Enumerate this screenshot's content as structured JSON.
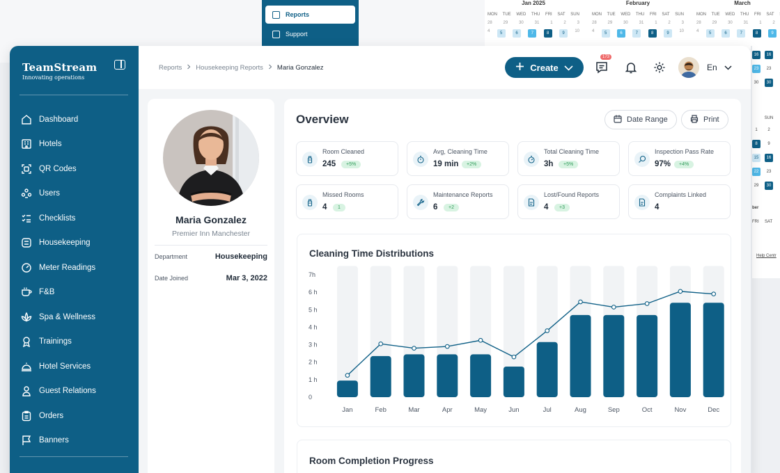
{
  "ghost": {
    "nav": [
      {
        "label": "Reports",
        "active": true
      },
      {
        "label": "Support",
        "active": false
      }
    ],
    "calendar": {
      "months": [
        "Jan 2025",
        "February",
        "March"
      ],
      "weekdays": [
        "MON",
        "TUE",
        "WED",
        "THU",
        "FRI",
        "SAT",
        "SUN"
      ],
      "row1": [
        "28",
        "29",
        "30",
        "31",
        "1",
        "2",
        "3"
      ],
      "row2": [
        "4",
        "5",
        "6",
        "7",
        "8",
        "9",
        "10"
      ]
    },
    "right_weekdays": [
      "FRI",
      "SAT",
      "SUN"
    ],
    "right_days": [
      "16",
      "23",
      "30",
      "1",
      "2",
      "8",
      "9",
      "15",
      "16",
      "22",
      "23",
      "29",
      "30"
    ],
    "right_fragment": "ber",
    "right_link": "Help Centr"
  },
  "brand": {
    "name": "TeamStream",
    "tagline": "Innovating operations"
  },
  "sidebar": {
    "items": [
      {
        "label": "Dashboard",
        "icon": "home-icon"
      },
      {
        "label": "Hotels",
        "icon": "building-icon"
      },
      {
        "label": "QR Codes",
        "icon": "qr-code-icon"
      },
      {
        "label": "Users",
        "icon": "users-icon"
      },
      {
        "label": "Checklists",
        "icon": "checklist-icon"
      },
      {
        "label": "Housekeeping",
        "icon": "housekeeping-icon"
      },
      {
        "label": "Meter Readings",
        "icon": "gauge-icon"
      },
      {
        "label": "F&B",
        "icon": "cup-icon"
      },
      {
        "label": "Spa & Wellness",
        "icon": "lotus-icon"
      },
      {
        "label": "Trainings",
        "icon": "award-icon"
      },
      {
        "label": "Hotel Services",
        "icon": "bell-service-icon"
      },
      {
        "label": "Guest Relations",
        "icon": "person-icon"
      },
      {
        "label": "Orders",
        "icon": "orders-icon"
      },
      {
        "label": "Banners",
        "icon": "flag-icon"
      }
    ]
  },
  "header": {
    "breadcrumbs": [
      "Reports",
      "Housekeeping Reports",
      "Maria Gonzalez"
    ],
    "create_label": "Create",
    "messages_badge": "173",
    "language": "En"
  },
  "profile": {
    "name": "Maria Gonzalez",
    "hotel": "Premier Inn Manchester",
    "department_label": "Department",
    "department": "Housekeeping",
    "joined_label": "Date Joined",
    "joined": "Mar 3, 2022"
  },
  "overview": {
    "title": "Overview",
    "date_range_label": "Date Range",
    "print_label": "Print",
    "stats": [
      {
        "label": "Room Cleaned",
        "value": "245",
        "badge": "+5%",
        "icon": "spray-bottle-icon"
      },
      {
        "label": "Avg, Cleaning Time",
        "value": "19 min",
        "badge": "+2%",
        "icon": "stopwatch-icon"
      },
      {
        "label": "Total Cleaning Time",
        "value": "3h",
        "badge": "+5%",
        "icon": "timer-icon"
      },
      {
        "label": "Inspection Pass Rate",
        "value": "97%",
        "badge": "+4%",
        "icon": "magnifier-icon"
      },
      {
        "label": "Missed Rooms",
        "value": "4",
        "badge": "1",
        "icon": "spray-bottle-icon"
      },
      {
        "label": "Maintenance Reports",
        "value": "6",
        "badge": "+2",
        "icon": "wrench-icon"
      },
      {
        "label": "Lost/Found Reports",
        "value": "4",
        "badge": "+3",
        "icon": "document-icon"
      },
      {
        "label": "Complaints Linked",
        "value": "4",
        "badge": "",
        "icon": "document-icon"
      }
    ],
    "progress_title": "Room Completion Progress"
  },
  "chart_data": {
    "type": "bar",
    "title": "Cleaning Time Distributions",
    "categories": [
      "Jan",
      "Feb",
      "Mar",
      "Apr",
      "May",
      "Jun",
      "Jul",
      "Aug",
      "Sep",
      "Oct",
      "Nov",
      "Dec"
    ],
    "series": [
      {
        "values": [
          0.95,
          2.35,
          2.45,
          2.45,
          2.45,
          1.75,
          3.15,
          4.7,
          4.7,
          4.7,
          5.4,
          5.4
        ]
      },
      {
        "values": [
          1.25,
          3.05,
          2.8,
          2.9,
          3.25,
          2.3,
          3.8,
          5.45,
          5.15,
          5.35,
          6.05,
          5.9
        ]
      }
    ],
    "background_max": 7.5,
    "yticks": [
      "0",
      "1 h",
      "2 h",
      "3 h",
      "4 h",
      "5 h",
      "6 h",
      "7h"
    ],
    "ylim": [
      0,
      7
    ],
    "colors": {
      "bar": "#0e5f86",
      "track": "#f1f3f5",
      "line": "#0e5f86"
    }
  }
}
